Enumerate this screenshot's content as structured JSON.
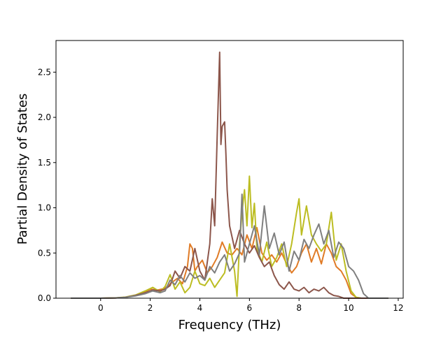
{
  "chart_data": {
    "type": "line",
    "title": "",
    "xlabel": "Frequency (THz)",
    "ylabel": "Partial Density of States",
    "xlim": [
      -1.8,
      12.2
    ],
    "ylim": [
      0,
      2.85
    ],
    "xticks": [
      0,
      2,
      4,
      6,
      8,
      10,
      12
    ],
    "xtick_labels": [
      "0",
      "2",
      "4",
      "6",
      "8",
      "10",
      "12"
    ],
    "yticks": [
      0,
      0.5,
      1.0,
      1.5,
      2.0,
      2.5
    ],
    "ytick_labels": [
      "0.0",
      "0.5",
      "1.0",
      "1.5",
      "2.0",
      "2.5"
    ],
    "grid": false,
    "legend": "none",
    "series": [
      {
        "color": "#e07b26",
        "points": [
          [
            -1.2,
            0
          ],
          [
            0,
            0
          ],
          [
            0.6,
            0.003
          ],
          [
            1.0,
            0.01
          ],
          [
            1.4,
            0.03
          ],
          [
            1.8,
            0.07
          ],
          [
            2.0,
            0.1
          ],
          [
            2.3,
            0.09
          ],
          [
            2.6,
            0.11
          ],
          [
            2.9,
            0.18
          ],
          [
            3.1,
            0.22
          ],
          [
            3.3,
            0.16
          ],
          [
            3.5,
            0.35
          ],
          [
            3.6,
            0.6
          ],
          [
            3.7,
            0.55
          ],
          [
            3.8,
            0.3
          ],
          [
            3.9,
            0.35
          ],
          [
            4.1,
            0.42
          ],
          [
            4.3,
            0.28
          ],
          [
            4.5,
            0.35
          ],
          [
            4.7,
            0.45
          ],
          [
            4.9,
            0.62
          ],
          [
            5.1,
            0.5
          ],
          [
            5.3,
            0.48
          ],
          [
            5.5,
            0.55
          ],
          [
            5.7,
            0.48
          ],
          [
            5.9,
            0.7
          ],
          [
            6.1,
            0.55
          ],
          [
            6.3,
            0.78
          ],
          [
            6.5,
            0.5
          ],
          [
            6.7,
            0.42
          ],
          [
            6.9,
            0.48
          ],
          [
            7.1,
            0.4
          ],
          [
            7.3,
            0.5
          ],
          [
            7.5,
            0.38
          ],
          [
            7.7,
            0.28
          ],
          [
            7.9,
            0.35
          ],
          [
            8.1,
            0.5
          ],
          [
            8.3,
            0.6
          ],
          [
            8.5,
            0.4
          ],
          [
            8.7,
            0.55
          ],
          [
            8.9,
            0.38
          ],
          [
            9.1,
            0.6
          ],
          [
            9.3,
            0.5
          ],
          [
            9.5,
            0.35
          ],
          [
            9.7,
            0.3
          ],
          [
            9.9,
            0.2
          ],
          [
            10.1,
            0.05
          ],
          [
            10.3,
            0.01
          ],
          [
            10.5,
            0
          ],
          [
            11.6,
            0
          ]
        ]
      },
      {
        "color": "#bcbd22",
        "points": [
          [
            -1.2,
            0
          ],
          [
            0,
            0
          ],
          [
            0.6,
            0.004
          ],
          [
            1.0,
            0.012
          ],
          [
            1.4,
            0.035
          ],
          [
            1.8,
            0.08
          ],
          [
            2.1,
            0.12
          ],
          [
            2.4,
            0.07
          ],
          [
            2.6,
            0.13
          ],
          [
            2.8,
            0.26
          ],
          [
            3.0,
            0.1
          ],
          [
            3.2,
            0.18
          ],
          [
            3.4,
            0.06
          ],
          [
            3.6,
            0.12
          ],
          [
            3.8,
            0.3
          ],
          [
            4.0,
            0.16
          ],
          [
            4.2,
            0.14
          ],
          [
            4.4,
            0.22
          ],
          [
            4.6,
            0.12
          ],
          [
            4.8,
            0.2
          ],
          [
            5.0,
            0.28
          ],
          [
            5.2,
            0.6
          ],
          [
            5.4,
            0.3
          ],
          [
            5.5,
            0.02
          ],
          [
            5.6,
            0.6
          ],
          [
            5.7,
            0.95
          ],
          [
            5.8,
            1.2
          ],
          [
            5.9,
            0.8
          ],
          [
            6.0,
            1.35
          ],
          [
            6.1,
            0.78
          ],
          [
            6.2,
            1.05
          ],
          [
            6.3,
            0.55
          ],
          [
            6.5,
            0.4
          ],
          [
            6.7,
            0.62
          ],
          [
            6.9,
            0.35
          ],
          [
            7.1,
            0.45
          ],
          [
            7.3,
            0.6
          ],
          [
            7.5,
            0.35
          ],
          [
            7.7,
            0.6
          ],
          [
            7.9,
            0.95
          ],
          [
            8.0,
            1.1
          ],
          [
            8.1,
            0.7
          ],
          [
            8.3,
            1.02
          ],
          [
            8.5,
            0.7
          ],
          [
            8.7,
            0.6
          ],
          [
            8.9,
            0.52
          ],
          [
            9.1,
            0.6
          ],
          [
            9.3,
            0.95
          ],
          [
            9.5,
            0.42
          ],
          [
            9.7,
            0.6
          ],
          [
            9.9,
            0.3
          ],
          [
            10.1,
            0.08
          ],
          [
            10.3,
            0.01
          ],
          [
            10.5,
            0
          ],
          [
            11.6,
            0
          ]
        ]
      },
      {
        "color": "#8c564b",
        "points": [
          [
            -1.2,
            0
          ],
          [
            0,
            0
          ],
          [
            0.6,
            0.003
          ],
          [
            1.0,
            0.01
          ],
          [
            1.4,
            0.03
          ],
          [
            1.8,
            0.06
          ],
          [
            2.1,
            0.09
          ],
          [
            2.4,
            0.08
          ],
          [
            2.6,
            0.1
          ],
          [
            2.8,
            0.14
          ],
          [
            3.0,
            0.3
          ],
          [
            3.2,
            0.22
          ],
          [
            3.4,
            0.35
          ],
          [
            3.6,
            0.3
          ],
          [
            3.8,
            0.55
          ],
          [
            4.0,
            0.3
          ],
          [
            4.2,
            0.2
          ],
          [
            4.4,
            0.6
          ],
          [
            4.5,
            1.1
          ],
          [
            4.6,
            0.8
          ],
          [
            4.7,
            1.8
          ],
          [
            4.8,
            2.72
          ],
          [
            4.85,
            1.7
          ],
          [
            4.9,
            1.9
          ],
          [
            5.0,
            1.95
          ],
          [
            5.05,
            1.6
          ],
          [
            5.1,
            1.2
          ],
          [
            5.2,
            0.8
          ],
          [
            5.4,
            0.55
          ],
          [
            5.6,
            0.75
          ],
          [
            5.8,
            0.6
          ],
          [
            6.0,
            0.5
          ],
          [
            6.2,
            0.58
          ],
          [
            6.4,
            0.45
          ],
          [
            6.6,
            0.35
          ],
          [
            6.8,
            0.4
          ],
          [
            7.0,
            0.25
          ],
          [
            7.2,
            0.15
          ],
          [
            7.4,
            0.1
          ],
          [
            7.6,
            0.18
          ],
          [
            7.8,
            0.1
          ],
          [
            8.0,
            0.08
          ],
          [
            8.2,
            0.12
          ],
          [
            8.4,
            0.06
          ],
          [
            8.6,
            0.1
          ],
          [
            8.8,
            0.08
          ],
          [
            9.0,
            0.12
          ],
          [
            9.2,
            0.06
          ],
          [
            9.4,
            0.03
          ],
          [
            9.6,
            0.02
          ],
          [
            9.8,
            0
          ],
          [
            11.6,
            0
          ]
        ]
      },
      {
        "color": "#7f7f7f",
        "points": [
          [
            -1.2,
            0
          ],
          [
            0,
            0
          ],
          [
            0.6,
            0.003
          ],
          [
            1.0,
            0.01
          ],
          [
            1.4,
            0.025
          ],
          [
            1.8,
            0.05
          ],
          [
            2.1,
            0.08
          ],
          [
            2.4,
            0.06
          ],
          [
            2.6,
            0.08
          ],
          [
            2.8,
            0.2
          ],
          [
            3.0,
            0.15
          ],
          [
            3.2,
            0.25
          ],
          [
            3.4,
            0.18
          ],
          [
            3.6,
            0.28
          ],
          [
            3.8,
            0.22
          ],
          [
            4.0,
            0.25
          ],
          [
            4.2,
            0.2
          ],
          [
            4.4,
            0.35
          ],
          [
            4.6,
            0.28
          ],
          [
            4.8,
            0.4
          ],
          [
            5.0,
            0.48
          ],
          [
            5.2,
            0.3
          ],
          [
            5.4,
            0.38
          ],
          [
            5.6,
            0.5
          ],
          [
            5.7,
            1.15
          ],
          [
            5.8,
            0.4
          ],
          [
            6.0,
            0.6
          ],
          [
            6.2,
            0.8
          ],
          [
            6.4,
            0.48
          ],
          [
            6.6,
            1.02
          ],
          [
            6.8,
            0.55
          ],
          [
            7.0,
            0.72
          ],
          [
            7.2,
            0.48
          ],
          [
            7.4,
            0.62
          ],
          [
            7.6,
            0.3
          ],
          [
            7.8,
            0.52
          ],
          [
            8.0,
            0.42
          ],
          [
            8.2,
            0.65
          ],
          [
            8.4,
            0.55
          ],
          [
            8.6,
            0.7
          ],
          [
            8.8,
            0.82
          ],
          [
            9.0,
            0.6
          ],
          [
            9.2,
            0.75
          ],
          [
            9.4,
            0.45
          ],
          [
            9.6,
            0.62
          ],
          [
            9.8,
            0.55
          ],
          [
            10.0,
            0.35
          ],
          [
            10.2,
            0.3
          ],
          [
            10.4,
            0.2
          ],
          [
            10.6,
            0.05
          ],
          [
            10.8,
            0
          ],
          [
            11.6,
            0
          ]
        ]
      }
    ]
  }
}
